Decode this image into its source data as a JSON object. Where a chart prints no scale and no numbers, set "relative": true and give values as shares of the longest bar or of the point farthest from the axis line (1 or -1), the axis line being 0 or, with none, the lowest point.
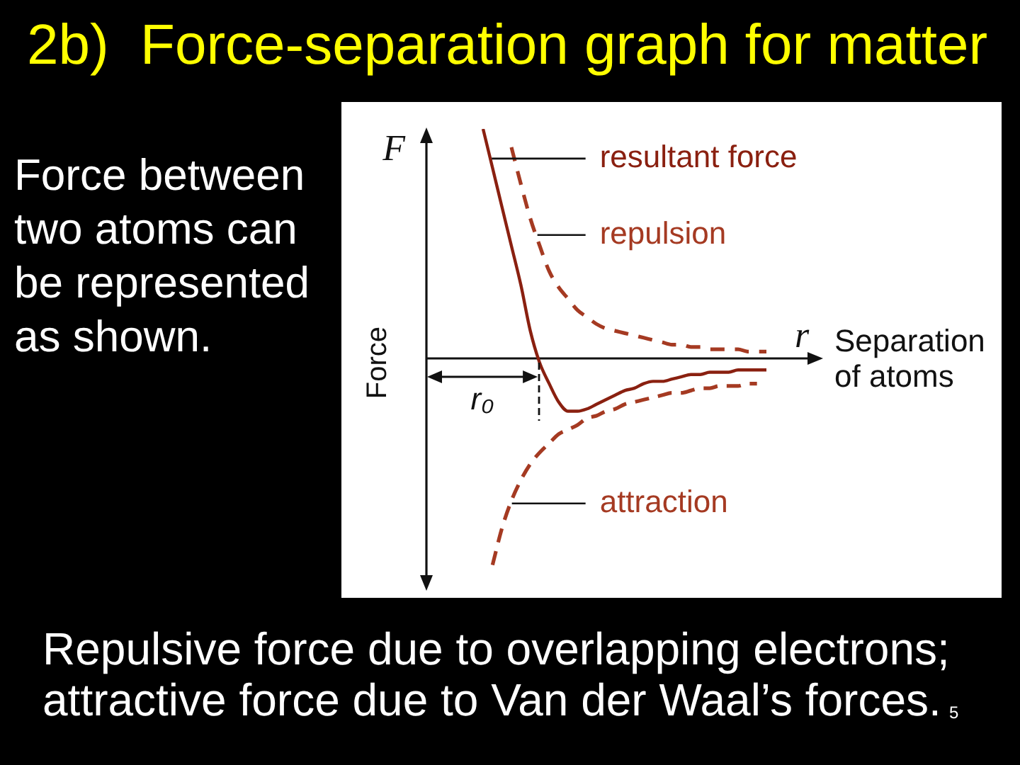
{
  "chart_data": {
    "type": "line",
    "title": "2b)  Force-separation graph for matter",
    "xlabel": "Separation of atoms",
    "ylabel": "Force",
    "annotations": [
      "Force between two atoms can be represented as shown.",
      "Repulsive force due to overlapping electrons; attractive force due to Van der Waal’s forces.",
      "5",
      "F",
      "r",
      "r₀"
    ],
    "relative": true,
    "categories": [
      null,
      null,
      null,
      null,
      null,
      null,
      null,
      null,
      null,
      null,
      null,
      null,
      null,
      null,
      null,
      null,
      null,
      null,
      null,
      null,
      null,
      null,
      null,
      null,
      null,
      null,
      null,
      null,
      null,
      null,
      null,
      null,
      null,
      null,
      null,
      null,
      null,
      null,
      null,
      null,
      null,
      null,
      null
    ],
    "series": [
      {
        "name": "resultant force",
        "color": "#8a2010",
        "line_style": "solid",
        "values": [
          null,
          null,
          null,
          null,
          null,
          null,
          1.0,
          0.83,
          0.66,
          0.49,
          0.32,
          0.12,
          -0.02,
          -0.11,
          -0.19,
          -0.23,
          -0.23,
          -0.22,
          -0.2,
          -0.18,
          -0.16,
          -0.14,
          -0.13,
          -0.11,
          -0.1,
          -0.1,
          -0.09,
          -0.08,
          -0.07,
          -0.07,
          -0.06,
          -0.06,
          -0.06,
          -0.05,
          -0.05,
          -0.05,
          -0.05,
          null,
          null,
          null,
          null,
          null,
          null
        ]
      },
      {
        "name": "repulsion",
        "color": "#a53a22",
        "line_style": "dashed",
        "values": [
          null,
          null,
          null,
          null,
          null,
          null,
          null,
          null,
          null,
          0.92,
          0.76,
          0.61,
          0.49,
          0.38,
          0.31,
          0.26,
          0.21,
          0.18,
          0.15,
          0.13,
          0.12,
          0.11,
          0.1,
          0.09,
          0.08,
          0.07,
          0.06,
          0.06,
          0.05,
          0.05,
          0.04,
          0.04,
          0.04,
          0.04,
          0.03,
          0.03,
          0.03,
          null,
          null,
          null,
          null,
          null,
          null
        ]
      },
      {
        "name": "attraction",
        "color": "#a53a22",
        "line_style": "dashed",
        "values": [
          null,
          null,
          null,
          null,
          null,
          null,
          null,
          -0.9,
          -0.74,
          -0.62,
          -0.53,
          -0.46,
          -0.41,
          -0.37,
          -0.33,
          -0.31,
          -0.29,
          -0.26,
          -0.25,
          -0.23,
          -0.22,
          -0.2,
          -0.19,
          -0.18,
          -0.17,
          -0.16,
          -0.15,
          -0.15,
          -0.14,
          -0.13,
          -0.13,
          -0.12,
          -0.12,
          -0.12,
          -0.11,
          -0.11,
          null,
          null,
          null,
          null,
          null,
          null,
          null
        ]
      }
    ]
  }
}
